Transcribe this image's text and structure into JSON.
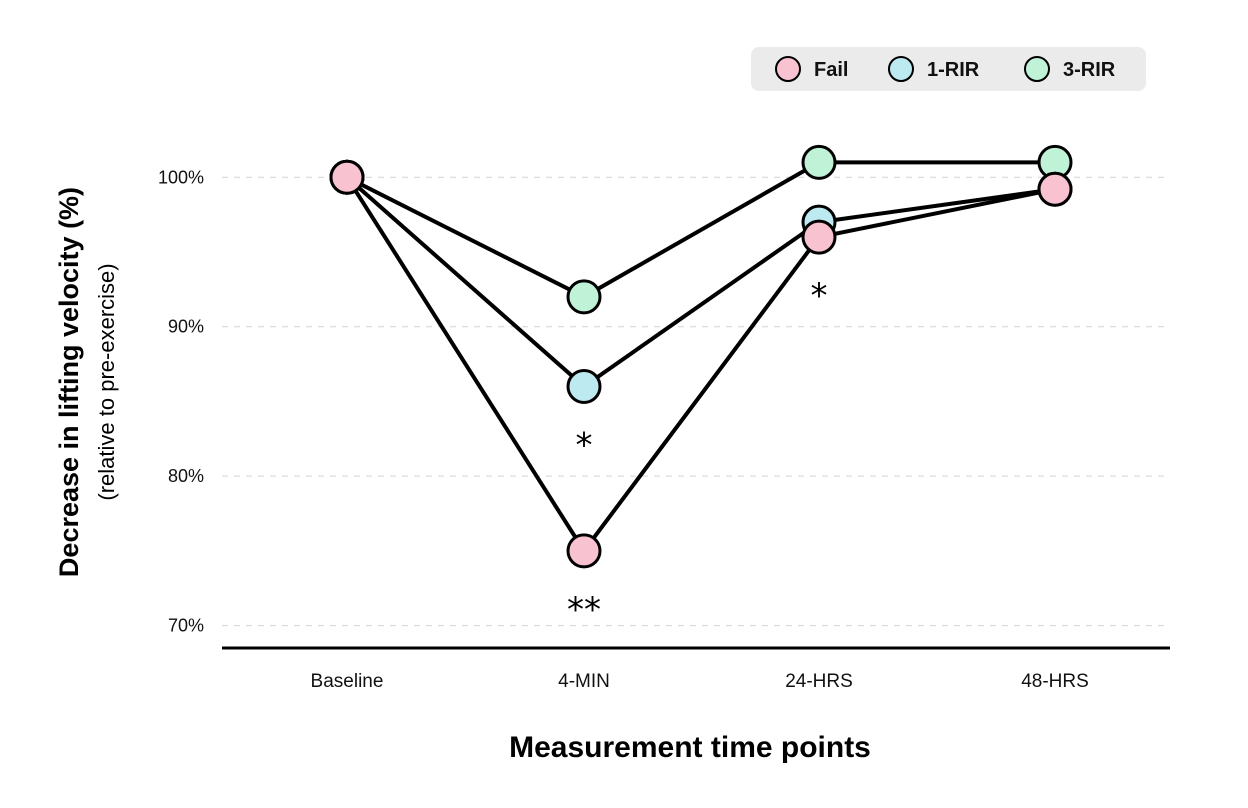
{
  "chart_data": {
    "type": "line",
    "title": "",
    "xlabel": "Measurement time points",
    "ylabel": "Decrease in lifting velocity (%)",
    "ylabel_sub": "(relative to pre-exercise)",
    "categories": [
      "Baseline",
      "4-MIN",
      "24-HRS",
      "48-HRS"
    ],
    "ylim": [
      68.5,
      103.5
    ],
    "yticks": [
      70,
      80,
      90,
      100
    ],
    "ytick_labels": [
      "70%",
      "80%",
      "90%",
      "100%"
    ],
    "grid": "horizontal dashed",
    "legend_position": "top-right",
    "series": [
      {
        "name": "3-RIR",
        "color": "#bff2d6",
        "values": [
          100,
          92,
          101,
          101
        ]
      },
      {
        "name": "1-RIR",
        "color": "#bde9f0",
        "values": [
          100,
          86,
          97,
          99.2
        ]
      },
      {
        "name": "Fail",
        "color": "#f8c2d1",
        "values": [
          100,
          75,
          96,
          99.2
        ]
      }
    ],
    "legend_order": [
      "Fail",
      "1-RIR",
      "3-RIR"
    ],
    "annotations": [
      {
        "text": "*",
        "category": "4-MIN",
        "near_series": "1-RIR"
      },
      {
        "text": "**",
        "category": "4-MIN",
        "near_series": "Fail"
      },
      {
        "text": "*",
        "category": "24-HRS",
        "near_series": "Fail"
      }
    ]
  }
}
